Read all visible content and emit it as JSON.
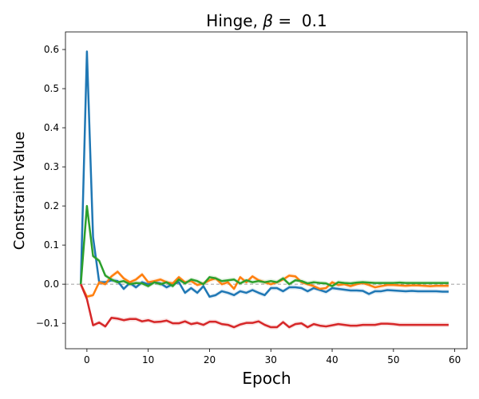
{
  "chart_data": {
    "type": "line",
    "title_prefix": "Hinge, ",
    "title_symbol": "β",
    "title_suffix": " =  0.1",
    "xlabel": "Epoch",
    "ylabel": "Constraint Value",
    "xlim": [
      -3.5,
      62
    ],
    "ylim": [
      -0.165,
      0.645
    ],
    "xticks": [
      0,
      10,
      20,
      30,
      40,
      50,
      60
    ],
    "yticks": [
      -0.1,
      0.0,
      0.1,
      0.2,
      0.3,
      0.4,
      0.5,
      0.6
    ],
    "ytick_labels": [
      "−0.1",
      "0.0",
      "0.1",
      "0.2",
      "0.3",
      "0.4",
      "0.5",
      "0.6"
    ],
    "reference_line": 0.0,
    "grid": false,
    "series": [
      {
        "color": "#1f77b4",
        "x": [
          -1,
          0,
          1,
          2,
          3,
          4,
          5,
          6,
          7,
          8,
          9,
          10,
          11,
          12,
          13,
          14,
          15,
          16,
          17,
          18,
          19,
          20,
          21,
          22,
          23,
          24,
          25,
          26,
          27,
          28,
          29,
          30,
          31,
          32,
          33,
          34,
          35,
          36,
          37,
          38,
          39,
          40,
          41,
          42,
          43,
          44,
          45,
          46,
          47,
          48,
          49,
          50,
          51,
          52,
          53,
          54,
          55,
          56,
          57,
          58,
          59
        ],
        "values": [
          0.0,
          0.595,
          0.12,
          0.005,
          0.005,
          0.01,
          0.008,
          -0.012,
          0.003,
          -0.008,
          0.005,
          0.0,
          0.005,
          0.002,
          -0.008,
          0.0,
          0.005,
          -0.022,
          -0.01,
          -0.022,
          -0.005,
          -0.032,
          -0.028,
          -0.018,
          -0.022,
          -0.028,
          -0.018,
          -0.022,
          -0.015,
          -0.022,
          -0.028,
          -0.01,
          -0.01,
          -0.018,
          -0.008,
          -0.008,
          -0.01,
          -0.018,
          -0.01,
          -0.015,
          -0.02,
          -0.01,
          -0.012,
          -0.014,
          -0.016,
          -0.016,
          -0.017,
          -0.025,
          -0.018,
          -0.018,
          -0.015,
          -0.016,
          -0.017,
          -0.018,
          -0.017,
          -0.018,
          -0.018,
          -0.018,
          -0.018,
          -0.019,
          -0.019
        ]
      },
      {
        "color": "#ff7f0e",
        "x": [
          -1,
          0,
          1,
          2,
          3,
          4,
          5,
          6,
          7,
          8,
          9,
          10,
          11,
          12,
          13,
          14,
          15,
          16,
          17,
          18,
          19,
          20,
          21,
          22,
          23,
          24,
          25,
          26,
          27,
          28,
          29,
          30,
          31,
          32,
          33,
          34,
          35,
          36,
          37,
          38,
          39,
          40,
          41,
          42,
          43,
          44,
          45,
          46,
          47,
          48,
          49,
          50,
          51,
          52,
          53,
          54,
          55,
          56,
          57,
          58,
          59
        ],
        "values": [
          0.0,
          -0.032,
          -0.028,
          0.005,
          0.0,
          0.02,
          0.032,
          0.015,
          0.005,
          0.012,
          0.025,
          0.005,
          0.008,
          0.012,
          0.005,
          0.002,
          0.018,
          0.005,
          0.008,
          -0.002,
          0.002,
          0.01,
          0.015,
          0.0,
          0.005,
          -0.012,
          0.018,
          0.005,
          0.02,
          0.01,
          0.005,
          0.0,
          0.005,
          0.012,
          0.022,
          0.02,
          0.005,
          0.0,
          -0.005,
          -0.012,
          -0.01,
          0.005,
          -0.002,
          0.0,
          -0.005,
          0.0,
          0.003,
          -0.002,
          -0.008,
          -0.005,
          -0.002,
          -0.002,
          -0.003,
          -0.004,
          -0.003,
          -0.003,
          -0.004,
          -0.005,
          -0.004,
          -0.004,
          -0.004
        ]
      },
      {
        "color": "#2ca02c",
        "x": [
          -1,
          0,
          1,
          2,
          3,
          4,
          5,
          6,
          7,
          8,
          9,
          10,
          11,
          12,
          13,
          14,
          15,
          16,
          17,
          18,
          19,
          20,
          21,
          22,
          23,
          24,
          25,
          26,
          27,
          28,
          29,
          30,
          31,
          32,
          33,
          34,
          35,
          36,
          37,
          38,
          39,
          40,
          41,
          42,
          43,
          44,
          45,
          46,
          47,
          48,
          49,
          50,
          51,
          52,
          53,
          54,
          55,
          56,
          57,
          58,
          59
        ],
        "values": [
          0.0,
          0.2,
          0.072,
          0.06,
          0.022,
          0.012,
          0.005,
          0.008,
          0.0,
          0.003,
          0.002,
          -0.005,
          0.005,
          0.0,
          0.005,
          -0.005,
          0.012,
          0.002,
          0.012,
          0.008,
          0.0,
          0.018,
          0.015,
          0.008,
          0.01,
          0.012,
          0.002,
          0.01,
          0.005,
          0.008,
          0.005,
          0.008,
          0.005,
          0.015,
          0.0,
          0.01,
          0.008,
          0.002,
          0.005,
          0.003,
          0.002,
          -0.005,
          0.005,
          0.003,
          0.002,
          0.004,
          0.005,
          0.004,
          0.003,
          0.003,
          0.003,
          0.003,
          0.004,
          0.003,
          0.003,
          0.003,
          0.003,
          0.003,
          0.003,
          0.003,
          0.003
        ]
      },
      {
        "color": "#d62728",
        "x": [
          -1,
          0,
          1,
          2,
          3,
          4,
          5,
          6,
          7,
          8,
          9,
          10,
          11,
          12,
          13,
          14,
          15,
          16,
          17,
          18,
          19,
          20,
          21,
          22,
          23,
          24,
          25,
          26,
          27,
          28,
          29,
          30,
          31,
          32,
          33,
          34,
          35,
          36,
          37,
          38,
          39,
          40,
          41,
          42,
          43,
          44,
          45,
          46,
          47,
          48,
          49,
          50,
          51,
          52,
          53,
          54,
          55,
          56,
          57,
          58,
          59
        ],
        "values": [
          0.0,
          -0.038,
          -0.105,
          -0.098,
          -0.108,
          -0.086,
          -0.088,
          -0.092,
          -0.089,
          -0.089,
          -0.095,
          -0.092,
          -0.097,
          -0.096,
          -0.093,
          -0.1,
          -0.1,
          -0.095,
          -0.102,
          -0.099,
          -0.104,
          -0.096,
          -0.096,
          -0.102,
          -0.104,
          -0.11,
          -0.103,
          -0.099,
          -0.099,
          -0.095,
          -0.104,
          -0.11,
          -0.11,
          -0.097,
          -0.11,
          -0.102,
          -0.1,
          -0.11,
          -0.102,
          -0.106,
          -0.108,
          -0.105,
          -0.102,
          -0.104,
          -0.106,
          -0.106,
          -0.104,
          -0.104,
          -0.104,
          -0.101,
          -0.101,
          -0.102,
          -0.104,
          -0.104,
          -0.104,
          -0.104,
          -0.104,
          -0.104,
          -0.104,
          -0.104,
          -0.104
        ]
      }
    ]
  }
}
